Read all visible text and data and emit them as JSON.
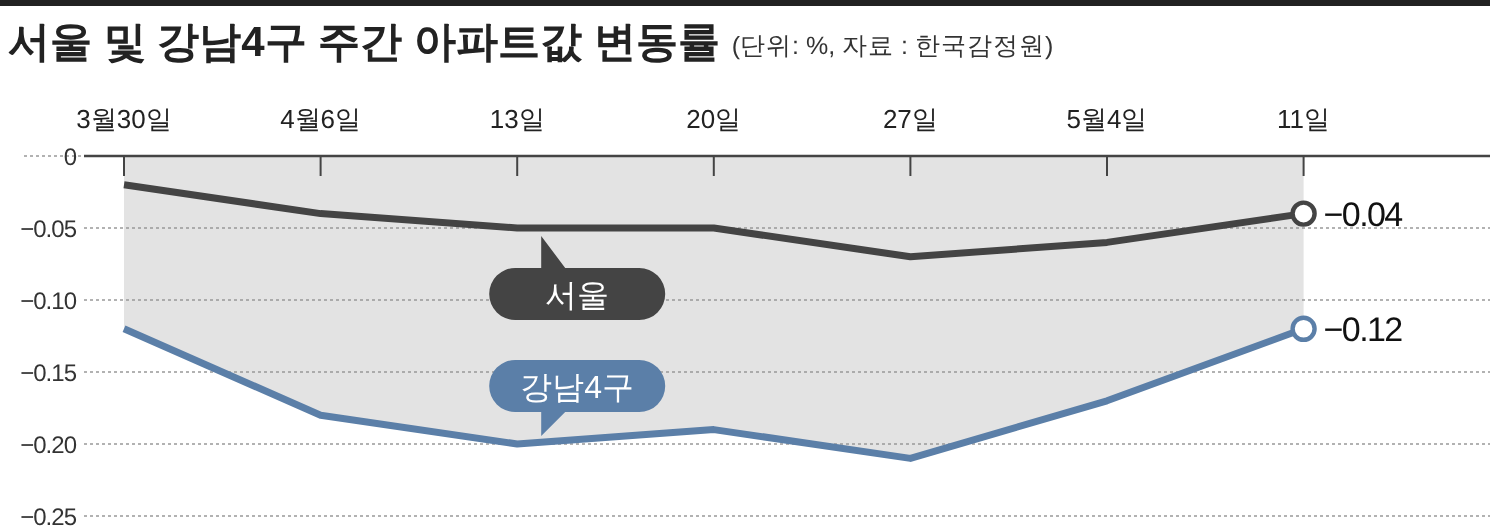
{
  "chart_data": {
    "type": "line",
    "title": "서울 및 강남4구 주간 아파트값 변동률",
    "subtitle": "(단위: %, 자료 : 한국감정원)",
    "categories": [
      "3월30일",
      "4월6일",
      "13일",
      "20일",
      "27일",
      "5월4일",
      "11일"
    ],
    "series": [
      {
        "name": "서울",
        "color": "#444444",
        "values": [
          -0.02,
          -0.04,
          -0.05,
          -0.05,
          -0.07,
          -0.06,
          -0.04
        ],
        "value_labels": [
          null,
          null,
          null,
          null,
          null,
          null,
          "−0.04"
        ]
      },
      {
        "name": "강남4구",
        "type": "area",
        "color": "#5b7fa8",
        "values": [
          -0.12,
          -0.18,
          -0.2,
          -0.19,
          -0.21,
          -0.17,
          -0.12
        ],
        "value_labels": [
          null,
          null,
          null,
          null,
          null,
          null,
          "−0.12"
        ]
      }
    ],
    "ylim": [
      -0.25,
      0
    ],
    "yticks": [
      0,
      {
        "value": -0.05,
        "label": "−0.05"
      },
      {
        "value": -0.1,
        "label": "−0.10"
      },
      {
        "value": -0.15,
        "label": "−0.15"
      },
      {
        "value": -0.2,
        "label": "−0.20"
      },
      {
        "value": -0.25,
        "label": "−0.25"
      }
    ],
    "grid": "y",
    "legend": false
  }
}
